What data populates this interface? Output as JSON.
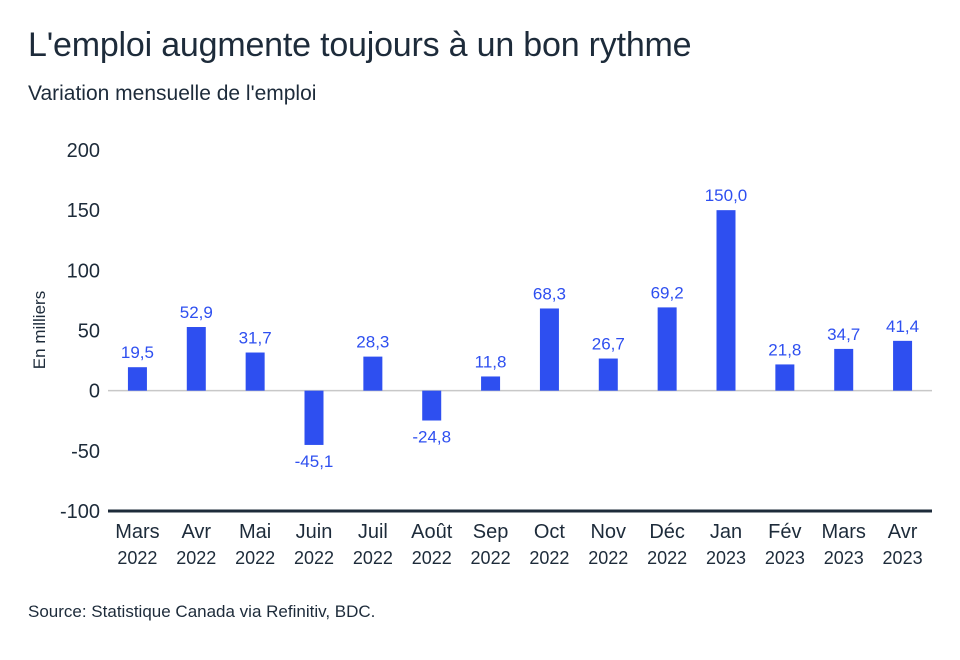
{
  "chart_data": {
    "type": "bar",
    "title": "L'emploi augmente toujours à un bon rythme",
    "subtitle": "Variation mensuelle de l'emploi",
    "ylabel": "En milliers",
    "xlabel": "",
    "ylim": [
      -100,
      200
    ],
    "yticks": [
      200,
      150,
      100,
      50,
      0,
      -50,
      -100
    ],
    "grid": false,
    "categories": [
      {
        "month": "Mars",
        "year": "2022"
      },
      {
        "month": "Avr",
        "year": "2022"
      },
      {
        "month": "Mai",
        "year": "2022"
      },
      {
        "month": "Juin",
        "year": "2022"
      },
      {
        "month": "Juil",
        "year": "2022"
      },
      {
        "month": "Août",
        "year": "2022"
      },
      {
        "month": "Sep",
        "year": "2022"
      },
      {
        "month": "Oct",
        "year": "2022"
      },
      {
        "month": "Nov",
        "year": "2022"
      },
      {
        "month": "Déc",
        "year": "2022"
      },
      {
        "month": "Jan",
        "year": "2023"
      },
      {
        "month": "Fév",
        "year": "2023"
      },
      {
        "month": "Mars",
        "year": "2023"
      },
      {
        "month": "Avr",
        "year": "2023"
      }
    ],
    "values": [
      19.5,
      52.9,
      31.7,
      -45.1,
      28.3,
      -24.8,
      11.8,
      68.3,
      26.7,
      69.2,
      150.0,
      21.8,
      34.7,
      41.4
    ],
    "data_labels": [
      "19,5",
      "52,9",
      "31,7",
      "-45,1",
      "28,3",
      "-24,8",
      "11,8",
      "68,3",
      "26,7",
      "69,2",
      "150,0",
      "21,8",
      "34,7",
      "41,4"
    ],
    "source": "Source: Statistique Canada via Refinitiv, BDC.",
    "colors": {
      "bar": "#2e4ff0",
      "label": "#2e4ff0",
      "axis": "#1d2b3a",
      "zero_line": "#c8c8c8"
    }
  }
}
